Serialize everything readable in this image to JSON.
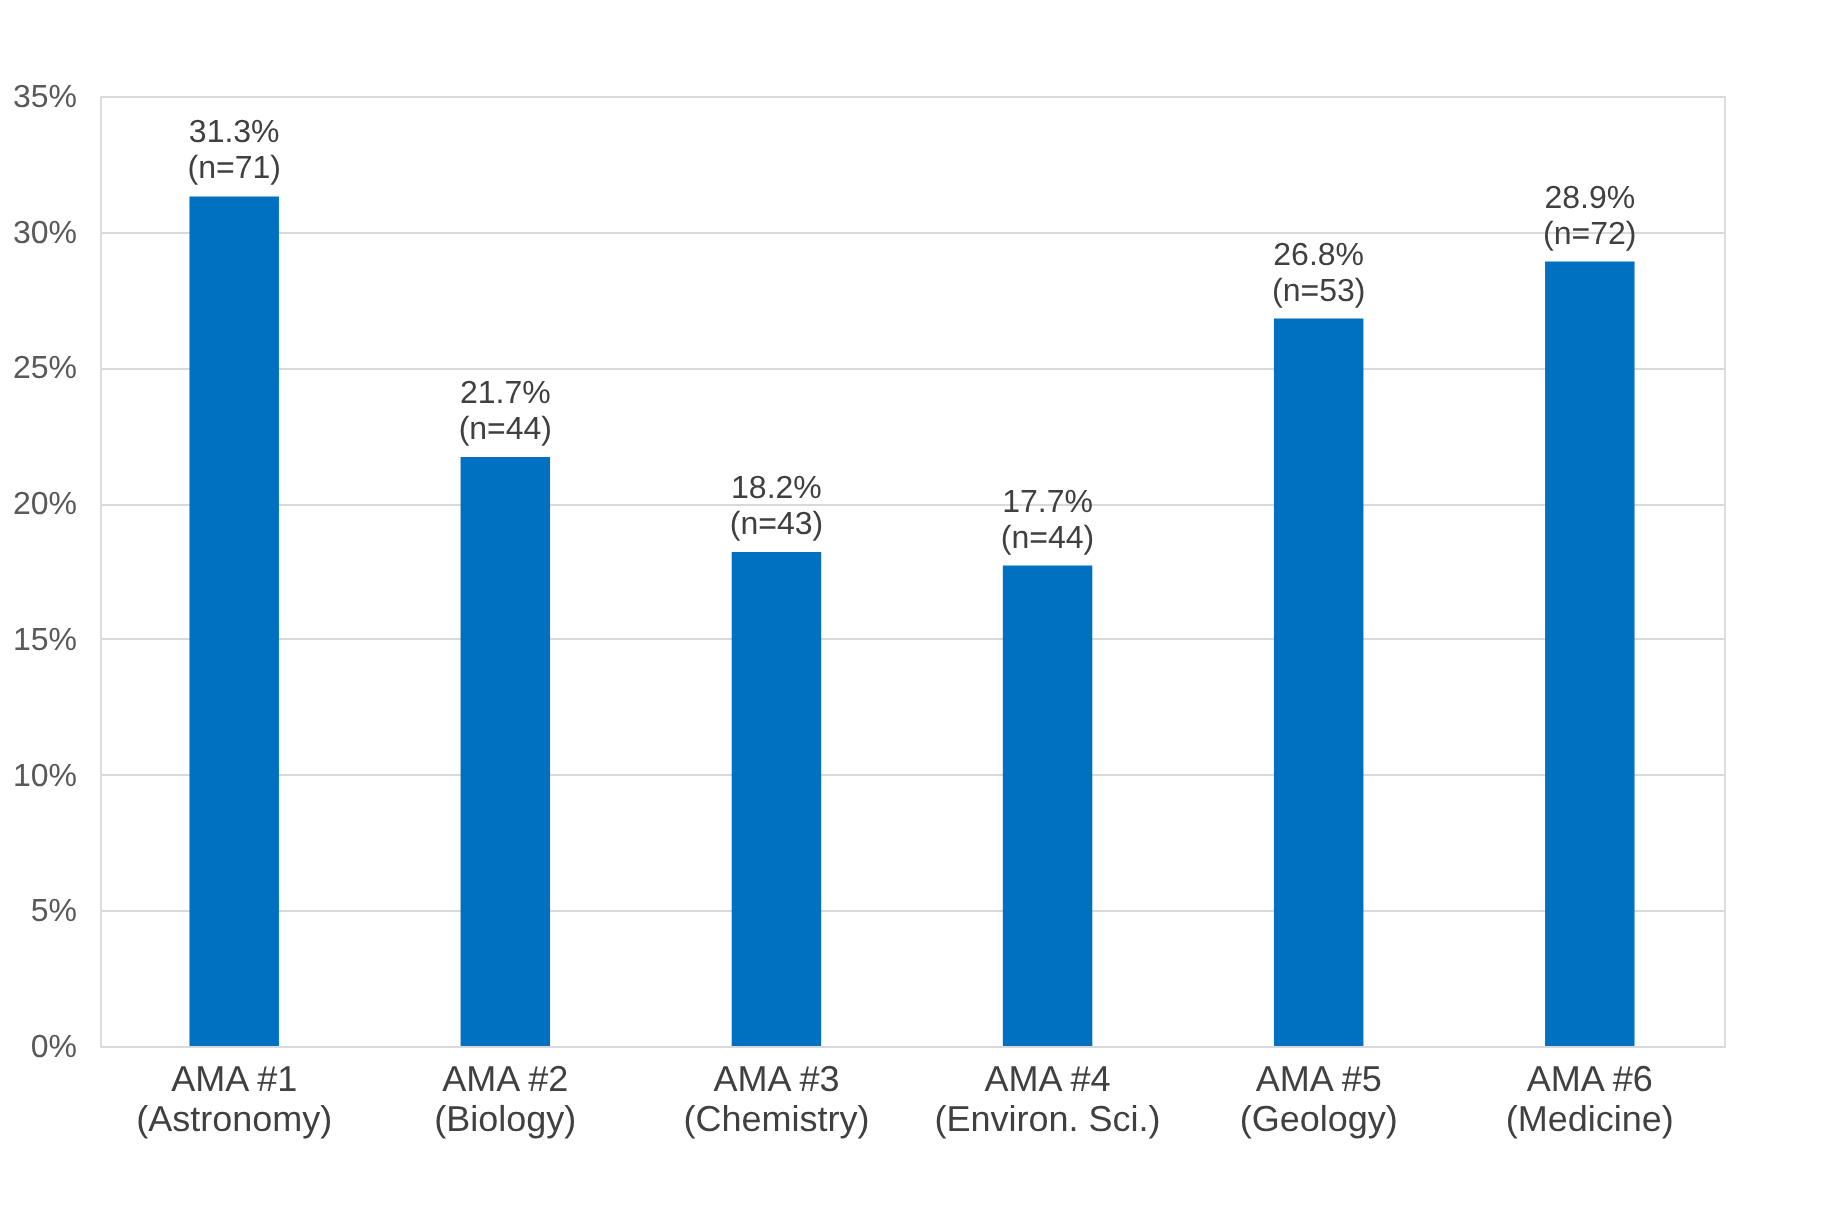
{
  "chart_data": {
    "type": "bar",
    "categories": [
      "AMA #1\n(Astronomy)",
      "AMA #2\n(Biology)",
      "AMA #3\n(Chemistry)",
      "AMA #4\n(Environ. Sci.)",
      "AMA #5\n(Geology)",
      "AMA #6\n(Medicine)"
    ],
    "values": [
      31.3,
      21.7,
      18.2,
      17.7,
      26.8,
      28.9
    ],
    "value_labels": [
      "31.3%\n(n=71)",
      "21.7%\n(n=44)",
      "18.2%\n(n=43)",
      "17.7%\n(n=44)",
      "26.8%\n(n=53)",
      "28.9%\n(n=72)"
    ],
    "color": "#0070c0",
    "ylim": [
      0,
      35
    ],
    "yticks": [
      {
        "value": 0,
        "label": "0%"
      },
      {
        "value": 5,
        "label": "5%"
      },
      {
        "value": 10,
        "label": "10%"
      },
      {
        "value": 15,
        "label": "15%"
      },
      {
        "value": 20,
        "label": "20%"
      },
      {
        "value": 25,
        "label": "25%"
      },
      {
        "value": 30,
        "label": "30%"
      },
      {
        "value": 35,
        "label": "35%"
      }
    ],
    "grid": "y"
  }
}
